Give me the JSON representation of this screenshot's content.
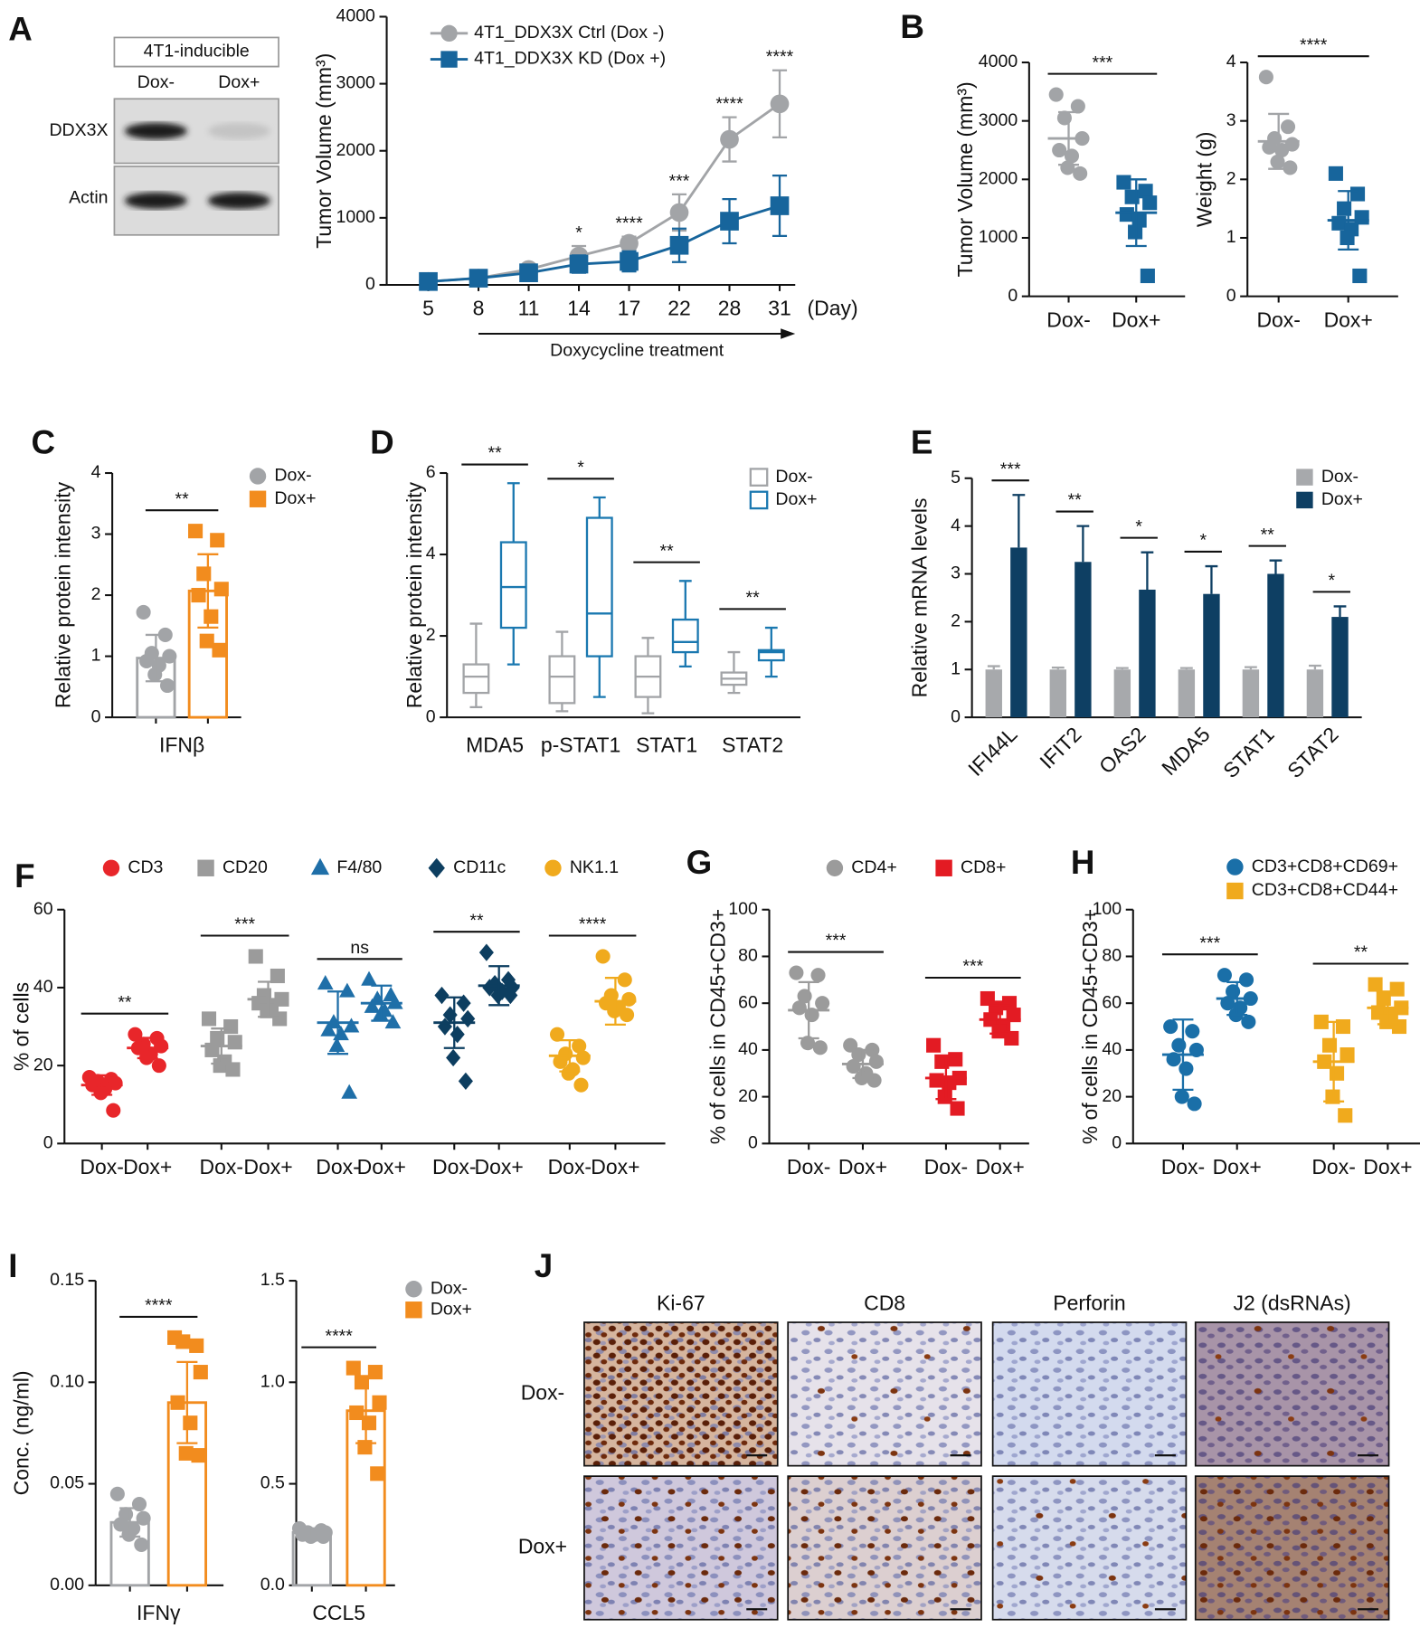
{
  "panels": [
    "A",
    "B",
    "C",
    "D",
    "E",
    "F",
    "G",
    "H",
    "I",
    "J"
  ],
  "blot": {
    "title": "4T1-inducible",
    "lanes": [
      "Dox-",
      "Dox+"
    ],
    "proteins": [
      "DDX3X",
      "Actin"
    ]
  },
  "ihc": {
    "stains": [
      "Ki-67",
      "CD8",
      "Perforin",
      "J2 (dsRNAs)"
    ],
    "conditions": [
      "Dox-",
      "Dox+"
    ]
  },
  "chart_data": [
    {
      "type": "line",
      "ylabel": "Tumor Volume (mm³)",
      "xlabel": "(Day)",
      "x_annotation": "Doxycycline treatment",
      "categories": [
        "5",
        "8",
        "11",
        "14",
        "17",
        "22",
        "28",
        "31"
      ],
      "ylim": [
        0,
        4000
      ],
      "yticks": [
        0,
        1000,
        2000,
        3000,
        4000
      ],
      "series": [
        {
          "name": "4T1_DDX3X Ctrl (Dox -)",
          "color": "#a2a4a7",
          "marker": "circle",
          "values": [
            50,
            100,
            230,
            430,
            620,
            1080,
            2170,
            2700
          ],
          "errors": [
            20,
            30,
            60,
            150,
            100,
            270,
            330,
            500
          ]
        },
        {
          "name": "4T1_DDX3X KD (Dox +)",
          "color": "#17659c",
          "marker": "square",
          "values": [
            50,
            100,
            180,
            310,
            350,
            590,
            950,
            1180
          ],
          "errors": [
            20,
            30,
            50,
            130,
            150,
            250,
            330,
            450
          ]
        }
      ],
      "significance": [
        null,
        null,
        null,
        "*",
        "****",
        "***",
        "****",
        "****"
      ]
    },
    {
      "type": "dot",
      "ylabel": "Tumor Volume (mm³)",
      "ylim": [
        0,
        4000
      ],
      "yticks": [
        0,
        1000,
        2000,
        3000,
        4000
      ],
      "bars": false,
      "columns": [
        {
          "label": "Dox-",
          "color": "#a2a4a7",
          "marker": "circle",
          "mean": 2700,
          "sd": 450,
          "points": [
            3450,
            3250,
            3050,
            2700,
            2500,
            2400,
            2200,
            2100
          ]
        },
        {
          "label": "Dox+",
          "color": "#17659c",
          "marker": "square",
          "mean": 1430,
          "sd": 570,
          "points": [
            1950,
            1800,
            1700,
            1600,
            1400,
            1300,
            1100,
            350
          ]
        }
      ],
      "significance": [
        "***"
      ]
    },
    {
      "type": "dot",
      "ylabel": "Weight (g)",
      "ylim": [
        0,
        4
      ],
      "yticks": [
        0,
        1,
        2,
        3,
        4
      ],
      "bars": false,
      "columns": [
        {
          "label": "Dox-",
          "color": "#a2a4a7",
          "marker": "circle",
          "mean": 2.65,
          "sd": 0.47,
          "points": [
            3.75,
            2.9,
            2.7,
            2.6,
            2.55,
            2.5,
            2.3,
            2.2
          ]
        },
        {
          "label": "Dox+",
          "color": "#17659c",
          "marker": "square",
          "mean": 1.3,
          "sd": 0.5,
          "points": [
            2.1,
            1.75,
            1.5,
            1.35,
            1.25,
            1.15,
            1.0,
            0.35
          ]
        }
      ],
      "significance": [
        "****"
      ]
    },
    {
      "type": "dot",
      "ylabel": "Relative protein intensity",
      "ylim": [
        0,
        4
      ],
      "yticks": [
        0,
        1,
        2,
        3,
        4
      ],
      "bars": true,
      "groups": [
        "IFNβ"
      ],
      "columns": [
        {
          "color": "#a2a4a7",
          "marker": "circle",
          "mean": 0.97,
          "sd": 0.38,
          "points": [
            1.72,
            1.35,
            1.05,
            1.0,
            0.92,
            0.85,
            0.7,
            0.52
          ]
        },
        {
          "color": "#f28c1e",
          "marker": "square",
          "mean": 2.07,
          "sd": 0.6,
          "points": [
            3.05,
            2.9,
            2.35,
            2.1,
            2.0,
            1.65,
            1.25,
            1.1
          ]
        }
      ],
      "significance": [
        "**"
      ],
      "legend": [
        {
          "name": "Dox-",
          "color": "#a2a4a7",
          "marker": "circle"
        },
        {
          "name": "Dox+",
          "color": "#f28c1e",
          "marker": "square"
        }
      ]
    },
    {
      "type": "box",
      "ylabel": "Relative protein intensity",
      "ylim": [
        0,
        6
      ],
      "yticks": [
        0,
        2,
        4,
        6
      ],
      "categories": [
        "MDA5",
        "p-STAT1",
        "STAT1",
        "STAT2"
      ],
      "series": [
        {
          "name": "Dox-",
          "color": "#a2a4a7",
          "min": [
            0.25,
            0.15,
            0.1,
            0.6
          ],
          "q1": [
            0.6,
            0.35,
            0.5,
            0.8
          ],
          "median": [
            1.0,
            1.0,
            1.0,
            0.95
          ],
          "q3": [
            1.3,
            1.5,
            1.5,
            1.1
          ],
          "max": [
            2.3,
            2.1,
            1.95,
            1.6
          ]
        },
        {
          "name": "Dox+",
          "color": "#1a78b0",
          "min": [
            1.3,
            0.5,
            1.25,
            1.0
          ],
          "q1": [
            2.2,
            1.5,
            1.6,
            1.4
          ],
          "median": [
            3.2,
            2.55,
            1.85,
            1.6
          ],
          "q3": [
            4.3,
            4.9,
            2.4,
            1.65
          ],
          "max": [
            5.75,
            5.4,
            3.35,
            2.2
          ]
        }
      ],
      "significance": [
        "**",
        "*",
        "**",
        "**"
      ]
    },
    {
      "type": "bar",
      "ylabel": "Relative mRNA levels",
      "ylim": [
        0,
        5
      ],
      "yticks": [
        0,
        1,
        2,
        3,
        4,
        5
      ],
      "categories": [
        "IFI44L",
        "IFIT2",
        "OAS2",
        "MDA5",
        "STAT1",
        "STAT2"
      ],
      "series": [
        {
          "name": "Dox-",
          "color": "#a7a9ac",
          "values": [
            1,
            1,
            1,
            1,
            1,
            1
          ],
          "errors": [
            0.07,
            0.04,
            0.03,
            0.03,
            0.05,
            0.08
          ]
        },
        {
          "name": "Dox+",
          "color": "#0e3f63",
          "values": [
            3.55,
            3.25,
            2.67,
            2.58,
            3.0,
            2.1
          ],
          "errors": [
            1.1,
            0.75,
            0.78,
            0.58,
            0.28,
            0.22
          ]
        }
      ],
      "significance": [
        "***",
        "**",
        "*",
        "*",
        "**",
        "*"
      ]
    },
    {
      "type": "dot",
      "ylabel": "% of cells",
      "ylim": [
        0,
        60
      ],
      "yticks": [
        0,
        20,
        40,
        60
      ],
      "bars": false,
      "columns": [
        {
          "label": "Dox-",
          "color": "#e8262a",
          "marker": "circle",
          "mean": 15,
          "sd": 2.5,
          "points": [
            17,
            16.5,
            16,
            15.5,
            15,
            14,
            13,
            8.5
          ]
        },
        {
          "label": "Dox+",
          "color": "#e8262a",
          "marker": "circle",
          "mean": 24.5,
          "sd": 2.6,
          "points": [
            28,
            27,
            25.5,
            25,
            24.5,
            23,
            22,
            20
          ]
        },
        {
          "label": "Dox-",
          "color": "#9b9b9b",
          "marker": "square",
          "mean": 25,
          "sd": 4.5,
          "points": [
            32,
            30,
            27,
            26,
            24,
            21,
            20,
            19
          ]
        },
        {
          "label": "Dox+",
          "color": "#9b9b9b",
          "marker": "square",
          "mean": 37,
          "sd": 4.5,
          "points": [
            48,
            43,
            38,
            37,
            36,
            35,
            34,
            32
          ]
        },
        {
          "label": "Dox-",
          "color": "#1f6fa8",
          "marker": "triangle",
          "mean": 31,
          "sd": 8,
          "points": [
            41,
            39,
            31,
            30,
            29,
            28,
            25,
            13
          ]
        },
        {
          "label": "Dox+",
          "color": "#1f6fa8",
          "marker": "triangle",
          "mean": 36,
          "sd": 4.5,
          "points": [
            42,
            38,
            37,
            36,
            35,
            34,
            33,
            31
          ]
        },
        {
          "label": "Dox-",
          "color": "#0d3e60",
          "marker": "diamond",
          "mean": 31,
          "sd": 6.5,
          "points": [
            38,
            36,
            33,
            32,
            30,
            28,
            22,
            16
          ]
        },
        {
          "label": "Dox+",
          "color": "#0d3e60",
          "marker": "diamond",
          "mean": 40.5,
          "sd": 5,
          "points": [
            49,
            42,
            41,
            40,
            40,
            39,
            38,
            38
          ]
        },
        {
          "label": "Dox-",
          "color": "#f0aa1d",
          "marker": "circle",
          "mean": 22.5,
          "sd": 4,
          "points": [
            28,
            25,
            23,
            22,
            21,
            19,
            18,
            15
          ]
        },
        {
          "label": "Dox+",
          "color": "#f0aa1d",
          "marker": "circle",
          "mean": 36.5,
          "sd": 6,
          "points": [
            48,
            42,
            38,
            37,
            36,
            35,
            34,
            33
          ]
        }
      ],
      "significance": [
        "**",
        "***",
        "ns",
        "**",
        "****"
      ],
      "legend": [
        {
          "name": "CD3",
          "color": "#e8262a",
          "marker": "circle"
        },
        {
          "name": "CD20",
          "color": "#9b9b9b",
          "marker": "square"
        },
        {
          "name": "F4/80",
          "color": "#1f6fa8",
          "marker": "triangle"
        },
        {
          "name": "CD11c",
          "color": "#0d3e60",
          "marker": "diamond"
        },
        {
          "name": "NK1.1",
          "color": "#f0aa1d",
          "marker": "circle"
        }
      ]
    },
    {
      "type": "dot",
      "ylabel": "% of cells in CD45+CD3+",
      "ylim": [
        0,
        100
      ],
      "yticks": [
        0,
        20,
        40,
        60,
        80,
        100
      ],
      "bars": false,
      "columns": [
        {
          "label": "Dox-",
          "color": "#9b9b9b",
          "marker": "circle",
          "mean": 57,
          "sd": 12,
          "points": [
            73,
            72,
            63,
            60,
            58,
            55,
            43,
            41
          ]
        },
        {
          "label": "Dox+",
          "color": "#9b9b9b",
          "marker": "circle",
          "mean": 34,
          "sd": 6,
          "points": [
            42,
            40,
            38,
            35,
            33,
            30,
            28,
            27
          ]
        },
        {
          "label": "Dox-",
          "color": "#e31b23",
          "marker": "square",
          "mean": 28,
          "sd": 9,
          "points": [
            42,
            36,
            35,
            28,
            27,
            26,
            20,
            15
          ]
        },
        {
          "label": "Dox+",
          "color": "#e31b23",
          "marker": "square",
          "mean": 53,
          "sd": 6,
          "points": [
            62,
            60,
            58,
            55,
            53,
            50,
            48,
            45
          ]
        }
      ],
      "significance": [
        "***",
        "***"
      ],
      "legend": [
        {
          "name": "CD4+",
          "color": "#9b9b9b",
          "marker": "circle"
        },
        {
          "name": "CD8+",
          "color": "#e31b23",
          "marker": "square"
        }
      ]
    },
    {
      "type": "dot",
      "ylabel": "% of cells in CD45+CD3+",
      "ylim": [
        0,
        100
      ],
      "yticks": [
        0,
        20,
        40,
        60,
        80,
        100
      ],
      "bars": false,
      "columns": [
        {
          "label": "Dox-",
          "color": "#1a6fa8",
          "marker": "circle",
          "mean": 38,
          "sd": 15,
          "points": [
            50,
            48,
            42,
            40,
            36,
            32,
            20,
            17
          ]
        },
        {
          "label": "Dox+",
          "color": "#1a6fa8",
          "marker": "circle",
          "mean": 62,
          "sd": 7,
          "points": [
            72,
            70,
            65,
            62,
            60,
            58,
            55,
            52
          ]
        },
        {
          "label": "Dox-",
          "color": "#f0aa1d",
          "marker": "square",
          "mean": 35,
          "sd": 17,
          "points": [
            52,
            50,
            42,
            38,
            35,
            30,
            20,
            12
          ]
        },
        {
          "label": "Dox+",
          "color": "#f0aa1d",
          "marker": "square",
          "mean": 58,
          "sd": 7,
          "points": [
            68,
            66,
            62,
            58,
            56,
            55,
            52,
            50
          ]
        }
      ],
      "significance": [
        "***",
        "**"
      ],
      "legend": [
        {
          "name": "CD3+CD8+CD69+",
          "color": "#1a6fa8",
          "marker": "circle"
        },
        {
          "name": "CD3+CD8+CD44+",
          "color": "#f0aa1d",
          "marker": "square"
        }
      ]
    },
    {
      "type": "dot",
      "ylabel": "Conc. (ng/ml)",
      "ylim": [
        0,
        0.15
      ],
      "yticks": [
        {
          "value": 0,
          "label": "0.00"
        },
        0.05,
        {
          "value": 0.1,
          "label": "0.10"
        },
        0.15
      ],
      "bars": true,
      "groups": [
        "IFNγ"
      ],
      "columns": [
        {
          "color": "#a2a4a7",
          "marker": "circle",
          "mean": 0.031,
          "sd": 0.007,
          "points": [
            0.045,
            0.04,
            0.035,
            0.033,
            0.03,
            0.028,
            0.025,
            0.02
          ]
        },
        {
          "color": "#f28c1e",
          "marker": "square",
          "mean": 0.09,
          "sd": 0.02,
          "points": [
            0.122,
            0.118,
            0.12,
            0.105,
            0.09,
            0.08,
            0.065,
            0.064
          ]
        }
      ],
      "significance": [
        "****"
      ]
    },
    {
      "type": "dot",
      "ylim": [
        0,
        1.5
      ],
      "yticks": [
        {
          "value": 0,
          "label": "0.0"
        },
        0.5,
        {
          "value": 1,
          "label": "1.0"
        },
        1.5
      ],
      "bars": true,
      "groups": [
        "CCL5"
      ],
      "columns": [
        {
          "color": "#a2a4a7",
          "marker": "circle",
          "mean": 0.26,
          "sd": 0.02,
          "points": [
            0.28,
            0.27,
            0.26,
            0.26,
            0.25,
            0.25,
            0.24,
            0.24
          ]
        },
        {
          "color": "#f28c1e",
          "marker": "square",
          "mean": 0.86,
          "sd": 0.16,
          "points": [
            1.07,
            1.05,
            1.0,
            0.9,
            0.85,
            0.8,
            0.68,
            0.55
          ]
        }
      ],
      "significance": [
        "****"
      ],
      "legend": [
        {
          "name": "Dox-",
          "color": "#a2a4a7",
          "marker": "circle"
        },
        {
          "name": "Dox+",
          "color": "#f28c1e",
          "marker": "square"
        }
      ]
    }
  ]
}
